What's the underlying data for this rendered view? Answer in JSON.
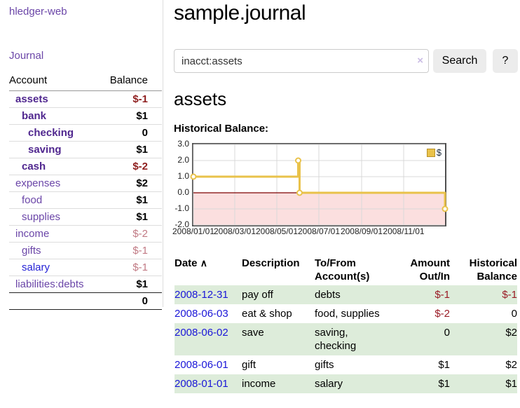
{
  "brand": "hledger-web",
  "nav": {
    "journal": "Journal"
  },
  "sidebar": {
    "header": {
      "account": "Account",
      "balance": "Balance"
    },
    "rows": [
      {
        "name": "assets",
        "balance": "$-1"
      },
      {
        "name": "bank",
        "balance": "$1"
      },
      {
        "name": "checking",
        "balance": "0"
      },
      {
        "name": "saving",
        "balance": "$1"
      },
      {
        "name": "cash",
        "balance": "$-2"
      },
      {
        "name": "expenses",
        "balance": "$2"
      },
      {
        "name": "food",
        "balance": "$1"
      },
      {
        "name": "supplies",
        "balance": "$1"
      },
      {
        "name": "income",
        "balance": "$-2"
      },
      {
        "name": "gifts",
        "balance": "$-1"
      },
      {
        "name": "salary",
        "balance": "$-1"
      },
      {
        "name": "liabilities:debts",
        "balance": "$1"
      }
    ],
    "total": "0"
  },
  "header": {
    "title": "sample.journal"
  },
  "search": {
    "value": "inacct:assets",
    "clear_label": "×",
    "button": "Search",
    "help": "?"
  },
  "account_page": {
    "heading": "assets",
    "chart_label": "Historical Balance:"
  },
  "chart_data": {
    "type": "line",
    "step": true,
    "title": "Historical Balance",
    "legend": [
      {
        "name": "$",
        "color": "#e9c24a"
      }
    ],
    "x_start": "2008-01-01",
    "x_end": "2008-12-31",
    "points": [
      {
        "date": "2008-01-01",
        "value": 1
      },
      {
        "date": "2008-06-01",
        "value": 2
      },
      {
        "date": "2008-06-03",
        "value": 0
      },
      {
        "date": "2008-12-31",
        "value": -1
      }
    ],
    "ylim": [
      -2,
      3
    ],
    "y_ticks": [
      3,
      2,
      1,
      0,
      -1,
      -2
    ],
    "y_tick_labels": [
      "3.0",
      "2.0",
      "1.0",
      "0.0",
      "-1.0",
      "-2.0"
    ],
    "x_ticks": [
      {
        "label": "2008/01/01",
        "date": "2008-01-01"
      },
      {
        "label": "2008/03/01",
        "date": "2008-03-01"
      },
      {
        "label": "2008/05/01",
        "date": "2008-05-01"
      },
      {
        "label": "2008/07/01",
        "date": "2008-07-01"
      },
      {
        "label": "2008/09/01",
        "date": "2008-09-01"
      },
      {
        "label": "2008/11/01",
        "date": "2008-11-01"
      }
    ],
    "grid": true,
    "legend_position": "top-right",
    "line_color": "#e9c24a",
    "marker_fill": "#ffffff",
    "negative_fill": "#fbdfdf",
    "zero_line_color": "#7d0000",
    "grid_color": "#d9d9d9"
  },
  "register": {
    "headers": {
      "date": "Date",
      "sort_icon": "∧",
      "description": "Description",
      "accounts_l1": "To/From",
      "accounts_l2": "Account(s)",
      "amount_l1": "Amount",
      "amount_l2": "Out/In",
      "balance_l1": "Historical",
      "balance_l2": "Balance"
    },
    "rows": [
      {
        "date": "2008-12-31",
        "description": "pay off",
        "accounts": "debts",
        "amount": "$-1",
        "balance": "$-1"
      },
      {
        "date": "2008-06-03",
        "description": "eat & shop",
        "accounts": "food, supplies",
        "amount": "$-2",
        "balance": "0"
      },
      {
        "date": "2008-06-02",
        "description": "save",
        "accounts": "saving, checking",
        "amount": "0",
        "balance": "$2"
      },
      {
        "date": "2008-06-01",
        "description": "gift",
        "accounts": "gifts",
        "amount": "$1",
        "balance": "$2"
      },
      {
        "date": "2008-01-01",
        "description": "income",
        "accounts": "salary",
        "amount": "$1",
        "balance": "$1"
      }
    ]
  }
}
